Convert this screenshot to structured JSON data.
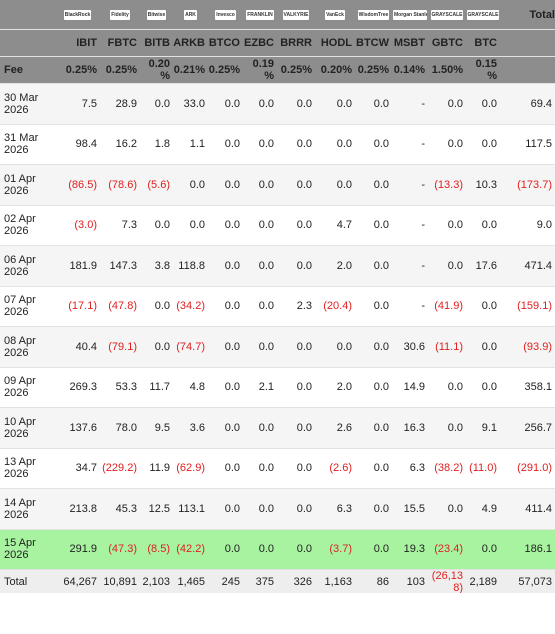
{
  "header": {
    "logos": [
      "BlackRock",
      "Fidelity",
      "Bitwise",
      "ARK",
      "Invesco",
      "FRANKLIN",
      "VALKYRIE",
      "VanEck",
      "WisdomTree",
      "Morgan Stanley",
      "GRAYSCALE",
      "GRAYSCALE"
    ],
    "total": "Total"
  },
  "tickers": [
    "IBIT",
    "FBTC",
    "BITB",
    "ARKB",
    "BTCO",
    "EZBC",
    "BRRR",
    "HODL",
    "BTCW",
    "MSBT",
    "GBTC",
    "BTC"
  ],
  "fee": {
    "label": "Fee",
    "values": [
      "0.25%",
      "0.25%",
      "0.20%",
      "0.21%",
      "0.25%",
      "0.19%",
      "0.25%",
      "0.20%",
      "0.25%",
      "0.14%",
      "1.50%",
      "0.15%"
    ]
  },
  "rows": [
    {
      "date": "30 Mar 2026",
      "values": [
        "7.5",
        "28.9",
        "0.0",
        "33.0",
        "0.0",
        "0.0",
        "0.0",
        "0.0",
        "0.0",
        "-",
        "0.0",
        "0.0",
        "69.4"
      ]
    },
    {
      "date": "31 Mar 2026",
      "values": [
        "98.4",
        "16.2",
        "1.8",
        "1.1",
        "0.0",
        "0.0",
        "0.0",
        "0.0",
        "0.0",
        "-",
        "0.0",
        "0.0",
        "117.5"
      ]
    },
    {
      "date": "01 Apr 2026",
      "values": [
        "(86.5)",
        "(78.6)",
        "(5.6)",
        "0.0",
        "0.0",
        "0.0",
        "0.0",
        "0.0",
        "0.0",
        "-",
        "(13.3)",
        "10.3",
        "(173.7)"
      ]
    },
    {
      "date": "02 Apr 2026",
      "values": [
        "(3.0)",
        "7.3",
        "0.0",
        "0.0",
        "0.0",
        "0.0",
        "0.0",
        "4.7",
        "0.0",
        "-",
        "0.0",
        "0.0",
        "9.0"
      ]
    },
    {
      "date": "06 Apr 2026",
      "values": [
        "181.9",
        "147.3",
        "3.8",
        "118.8",
        "0.0",
        "0.0",
        "0.0",
        "2.0",
        "0.0",
        "-",
        "0.0",
        "17.6",
        "471.4"
      ]
    },
    {
      "date": "07 Apr 2026",
      "values": [
        "(17.1)",
        "(47.8)",
        "0.0",
        "(34.2)",
        "0.0",
        "0.0",
        "2.3",
        "(20.4)",
        "0.0",
        "-",
        "(41.9)",
        "0.0",
        "(159.1)"
      ]
    },
    {
      "date": "08 Apr 2026",
      "values": [
        "40.4",
        "(79.1)",
        "0.0",
        "(74.7)",
        "0.0",
        "0.0",
        "0.0",
        "0.0",
        "0.0",
        "30.6",
        "(11.1)",
        "0.0",
        "(93.9)"
      ]
    },
    {
      "date": "09 Apr 2026",
      "values": [
        "269.3",
        "53.3",
        "11.7",
        "4.8",
        "0.0",
        "2.1",
        "0.0",
        "2.0",
        "0.0",
        "14.9",
        "0.0",
        "0.0",
        "358.1"
      ]
    },
    {
      "date": "10 Apr 2026",
      "values": [
        "137.6",
        "78.0",
        "9.5",
        "3.6",
        "0.0",
        "0.0",
        "0.0",
        "2.6",
        "0.0",
        "16.3",
        "0.0",
        "9.1",
        "256.7"
      ]
    },
    {
      "date": "13 Apr 2026",
      "values": [
        "34.7",
        "(229.2)",
        "11.9",
        "(62.9)",
        "0.0",
        "0.0",
        "0.0",
        "(2.6)",
        "0.0",
        "6.3",
        "(38.2)",
        "(11.0)",
        "(291.0)"
      ]
    },
    {
      "date": "14 Apr 2026",
      "values": [
        "213.8",
        "45.3",
        "12.5",
        "113.1",
        "0.0",
        "0.0",
        "0.0",
        "6.3",
        "0.0",
        "15.5",
        "0.0",
        "4.9",
        "411.4"
      ]
    },
    {
      "date": "15 Apr 2026",
      "values": [
        "291.9",
        "(47.3)",
        "(8.5)",
        "(42.2)",
        "0.0",
        "0.0",
        "0.0",
        "(3.7)",
        "0.0",
        "19.3",
        "(23.4)",
        "0.0",
        "186.1"
      ],
      "highlight": true
    }
  ],
  "total_row": {
    "label": "Total",
    "values": [
      "64,267",
      "10,891",
      "2,103",
      "1,465",
      "245",
      "375",
      "326",
      "1,163",
      "86",
      "103",
      "(26,138)",
      "2,189",
      "57,073"
    ]
  }
}
